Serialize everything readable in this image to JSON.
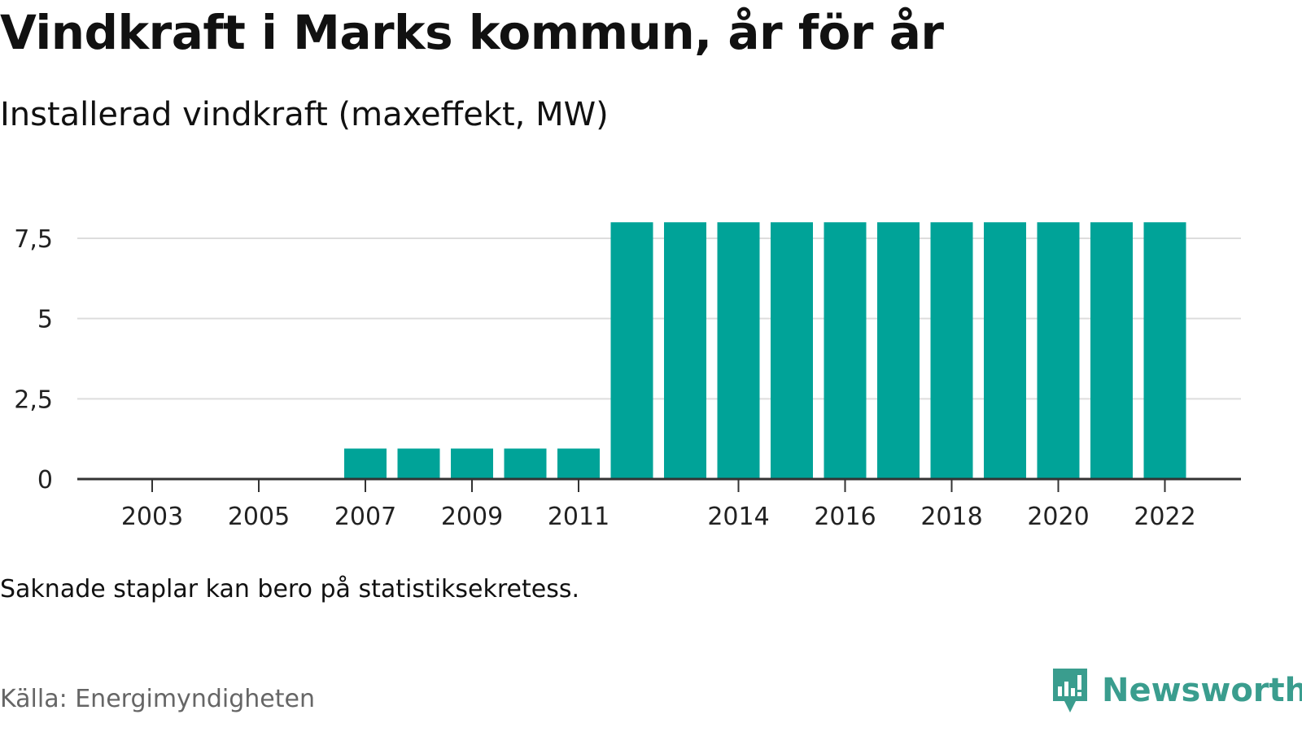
{
  "header": {
    "title": "Vindkraft i Marks kommun, år för år",
    "subtitle": "Installerad vindkraft (maxeffekt, MW)"
  },
  "footer": {
    "note": "Saknade staplar kan bero på statistiksekretess.",
    "source": "Källa: Energimyndigheten",
    "brand": "Newsworthy"
  },
  "colors": {
    "bar": "#00a398",
    "grid": "#dddddd",
    "axis": "#333333",
    "brand": "#3a9d8e"
  },
  "chart_data": {
    "type": "bar",
    "categories": [
      "2003",
      "2004",
      "2005",
      "2006",
      "2007",
      "2008",
      "2009",
      "2010",
      "2011",
      "2012",
      "2013",
      "2014",
      "2015",
      "2016",
      "2017",
      "2018",
      "2019",
      "2020",
      "2021",
      "2022"
    ],
    "values": [
      0,
      0,
      0,
      0,
      0.95,
      0.95,
      0.95,
      0.95,
      0.95,
      8,
      8,
      8,
      8,
      8,
      8,
      8,
      8,
      8,
      8,
      8
    ],
    "x_tick_labels": [
      "2003",
      "2005",
      "2007",
      "2009",
      "2011",
      "2014",
      "2016",
      "2018",
      "2020",
      "2022"
    ],
    "y_ticks": [
      0,
      2.5,
      5,
      7.5
    ],
    "y_tick_labels": [
      "0",
      "2,5",
      "5",
      "7,5"
    ],
    "ylim": [
      0,
      8
    ],
    "grid": true,
    "legend": "none"
  }
}
